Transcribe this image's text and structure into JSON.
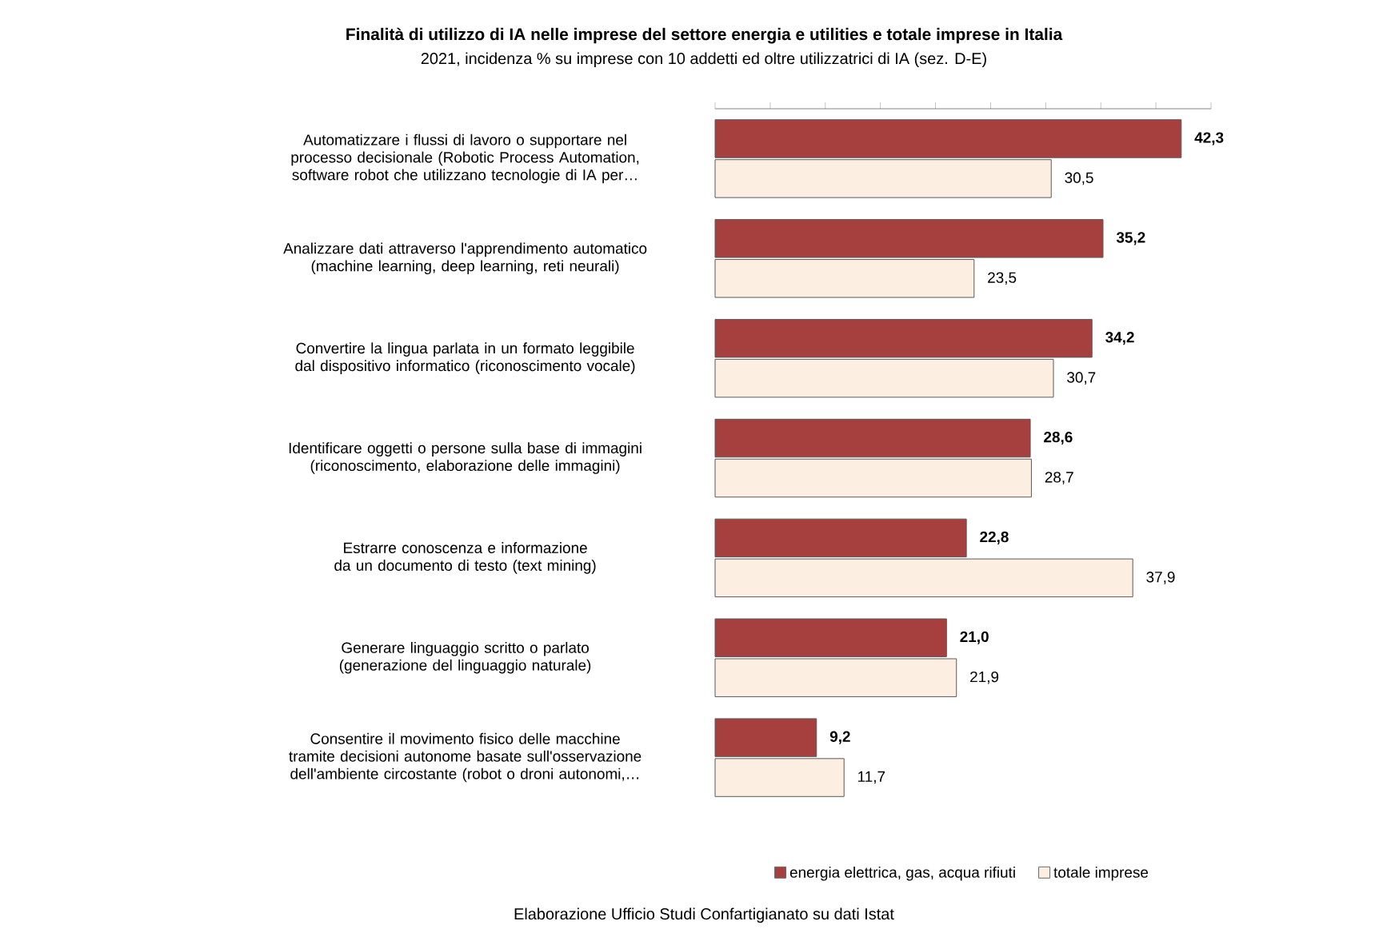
{
  "chart_data": {
    "type": "bar",
    "orientation": "horizontal",
    "title": "Finalità di utilizzo di IA nelle imprese del settore energia e utilities e totale imprese in Italia",
    "subtitle": "2021, incidenza % su imprese con 10 addetti ed oltre utilizzatrici di IA (sez. D-E)",
    "categories": [
      "Automatizzare i flussi di lavoro o supportare nel processo decisionale (Robotic Process Automation, software robot che utilizzano tecnologie di IA per…",
      "Analizzare dati attraverso l'apprendimento automatico (machine learning, deep learning, reti neurali)",
      "Convertire la lingua parlata in un formato leggibile dal dispositivo informatico (riconoscimento vocale)",
      "Identificare oggetti o persone sulla base di immagini (riconoscimento, elaborazione delle immagini)",
      "Estrarre conoscenza e informazione da un documento di testo (text mining)",
      "Generare linguaggio scritto o parlato (generazione del linguaggio naturale)",
      "Consentire il movimento fisico delle macchine tramite decisioni autonome basate sull'osservazione dell'ambiente circostante (robot o droni autonomi,…"
    ],
    "series": [
      {
        "name": "energia elettrica, gas, acqua  rifiuti",
        "color": "#a5403f",
        "values": [
          42.3,
          35.2,
          34.2,
          28.6,
          22.8,
          21.0,
          9.2
        ],
        "value_labels": [
          "42,3",
          "35,2",
          "34,2",
          "28,6",
          "22,8",
          "21,0",
          "9,2"
        ]
      },
      {
        "name": "totale imprese",
        "color": "#fdeee2",
        "values": [
          30.5,
          23.5,
          30.7,
          28.7,
          37.9,
          21.9,
          11.7
        ],
        "value_labels": [
          "30,5",
          "23,5",
          "30,7",
          "28,7",
          "37,9",
          "21,9",
          "11,7"
        ]
      }
    ],
    "xlim": [
      0,
      45
    ],
    "xticks": [
      {
        "value": 0,
        "label": null
      },
      {
        "value": 5,
        "label": null
      },
      {
        "value": 10,
        "label": null
      },
      {
        "value": 15,
        "label": null
      },
      {
        "value": 20,
        "label": null
      },
      {
        "value": 25,
        "label": null
      },
      {
        "value": 30,
        "label": null
      },
      {
        "value": 35,
        "label": null
      },
      {
        "value": 40,
        "label": null
      },
      {
        "value": 45,
        "label": null
      }
    ],
    "tick_labels": "y",
    "legend": "bottom",
    "annotations": [
      "Elaborazione Ufficio Studi Confartigianato su dati Istat"
    ]
  }
}
